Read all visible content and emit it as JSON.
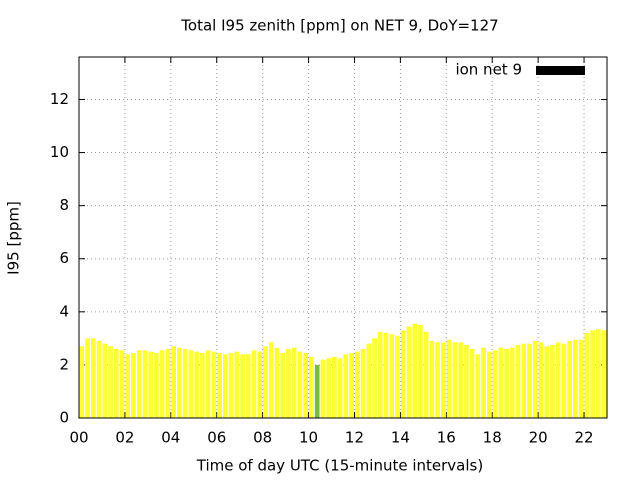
{
  "chart_data": {
    "type": "bar",
    "title": "Total I95 zenith [ppm] on NET 9, DoY=127",
    "x_label": "Time of day UTC (15-minute intervals)",
    "y_label": "I95 [ppm]",
    "legend": "ion net 9",
    "legend_color": "#000000",
    "legend_position": "top-right",
    "grid": true,
    "xlim": [
      0,
      23
    ],
    "ylim": [
      0,
      13.6
    ],
    "xticks": [
      {
        "value": 0,
        "label": "00"
      },
      {
        "value": 2,
        "label": "02"
      },
      {
        "value": 4,
        "label": "04"
      },
      {
        "value": 6,
        "label": "06"
      },
      {
        "value": 8,
        "label": "08"
      },
      {
        "value": 10,
        "label": "10"
      },
      {
        "value": 12,
        "label": "12"
      },
      {
        "value": 14,
        "label": "14"
      },
      {
        "value": 16,
        "label": "16"
      },
      {
        "value": 18,
        "label": "18"
      },
      {
        "value": 20,
        "label": "20"
      },
      {
        "value": 22,
        "label": "22"
      }
    ],
    "yticks": [
      0,
      2,
      4,
      6,
      8,
      10,
      12
    ],
    "x": [
      0,
      0.25,
      0.5,
      0.75,
      1,
      1.25,
      1.5,
      1.75,
      2,
      2.25,
      2.5,
      2.75,
      3,
      3.25,
      3.5,
      3.75,
      4,
      4.25,
      4.5,
      4.75,
      5,
      5.25,
      5.5,
      5.75,
      6,
      6.25,
      6.5,
      6.75,
      7,
      7.25,
      7.5,
      7.75,
      8,
      8.25,
      8.5,
      8.75,
      9,
      9.25,
      9.5,
      9.75,
      10,
      10.25,
      10.5,
      10.75,
      11,
      11.25,
      11.5,
      11.75,
      12,
      12.25,
      12.5,
      12.75,
      13,
      13.25,
      13.5,
      13.75,
      14,
      14.25,
      14.5,
      14.75,
      15,
      15.25,
      15.5,
      15.75,
      16,
      16.25,
      16.5,
      16.75,
      17,
      17.25,
      17.5,
      17.75,
      18,
      18.25,
      18.5,
      18.75,
      19,
      19.25,
      19.5,
      19.75,
      20,
      20.25,
      20.5,
      20.75,
      21,
      21.25,
      21.5,
      21.75,
      22,
      22.25,
      22.5,
      22.75
    ],
    "values": [
      2.7,
      3.0,
      3.0,
      2.9,
      2.8,
      2.7,
      2.6,
      2.55,
      2.4,
      2.45,
      2.55,
      2.55,
      2.5,
      2.45,
      2.55,
      2.6,
      2.7,
      2.65,
      2.6,
      2.55,
      2.5,
      2.45,
      2.55,
      2.5,
      2.45,
      2.4,
      2.45,
      2.5,
      2.4,
      2.4,
      2.55,
      2.5,
      2.7,
      2.85,
      2.65,
      2.45,
      2.6,
      2.65,
      2.5,
      2.45,
      2.3,
      2.0,
      2.2,
      2.25,
      2.3,
      2.25,
      2.4,
      2.45,
      2.5,
      2.6,
      2.8,
      3.0,
      3.25,
      3.2,
      3.15,
      3.1,
      3.3,
      3.45,
      3.55,
      3.5,
      3.25,
      2.9,
      2.85,
      2.85,
      2.95,
      2.85,
      2.85,
      2.75,
      2.6,
      2.4,
      2.65,
      2.5,
      2.55,
      2.65,
      2.6,
      2.65,
      2.75,
      2.8,
      2.8,
      2.9,
      2.85,
      2.7,
      2.75,
      2.85,
      2.8,
      2.9,
      2.95,
      2.95,
      3.2,
      3.3,
      3.35,
      3.3
    ],
    "color": "#ffff33",
    "highlight_color": "#77bb44",
    "highlight_x": [
      10.25
    ]
  }
}
